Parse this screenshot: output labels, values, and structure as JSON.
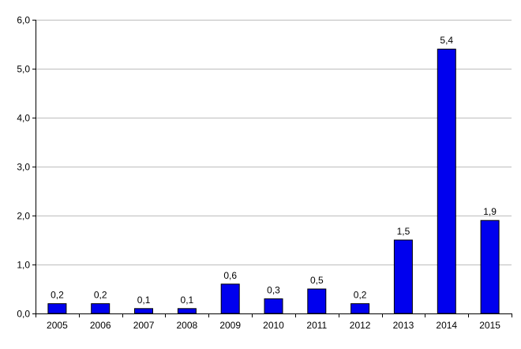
{
  "chart_data": {
    "type": "bar",
    "title": "",
    "xlabel": "",
    "ylabel": "",
    "categories": [
      "2005",
      "2006",
      "2007",
      "2008",
      "2009",
      "2010",
      "2011",
      "2012",
      "2013",
      "2014",
      "2015"
    ],
    "values": [
      0.2,
      0.2,
      0.1,
      0.1,
      0.6,
      0.3,
      0.5,
      0.2,
      1.5,
      5.4,
      1.9
    ],
    "data_labels": [
      "0,2",
      "0,2",
      "0,1",
      "0,1",
      "0,6",
      "0,3",
      "0,5",
      "0,2",
      "1,5",
      "5,4",
      "1,9"
    ],
    "ylim": [
      0,
      6
    ],
    "y_ticks": [
      0,
      1,
      2,
      3,
      4,
      5,
      6
    ],
    "y_tick_labels": [
      "0,0",
      "1,0",
      "2,0",
      "3,0",
      "4,0",
      "5,0",
      "6,0"
    ],
    "grid": true,
    "legend": "none",
    "colors": {
      "bar_fill": "#0000ee",
      "bar_stroke": "#000000",
      "grid": "#bdbdbd",
      "axis": "#000000"
    }
  }
}
